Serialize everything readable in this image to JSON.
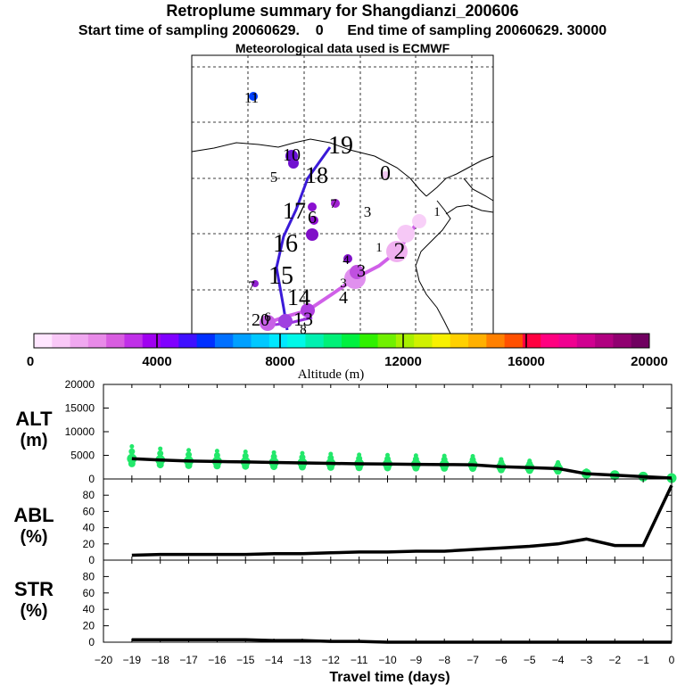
{
  "header": {
    "title": "Retroplume summary for Shangdianzi_200606",
    "subtitle": "Start time of sampling 20060629.    0      End time of sampling 20060629. 30000",
    "met": "Meteorological data used is ECMWF"
  },
  "colorbar": {
    "label": "Altitude (m)",
    "ticks": [
      "0",
      "4000",
      "8000",
      "12000",
      "16000",
      "20000"
    ],
    "colors": [
      "#ffe6ff",
      "#f9c8f7",
      "#f0a8f0",
      "#e88ae8",
      "#d85de0",
      "#c030e8",
      "#a000f0",
      "#8000ff",
      "#4010ff",
      "#0030ff",
      "#0070ff",
      "#00a0ff",
      "#00c8ff",
      "#00e8ff",
      "#00f8e8",
      "#00f0b0",
      "#00f078",
      "#00f040",
      "#30f000",
      "#70f000",
      "#a8f000",
      "#d0f000",
      "#f8f000",
      "#ffd000",
      "#ffb000",
      "#ff8000",
      "#ff5000",
      "#ff0040",
      "#ff0080",
      "#f00090",
      "#d00090",
      "#b00080",
      "#900070",
      "#700060"
    ]
  },
  "map": {
    "labels": [
      "11",
      "10",
      "5",
      "18",
      "19",
      "0",
      "7",
      "17",
      "3",
      "6",
      "16",
      "1",
      "4",
      "7",
      "15",
      "2",
      "3",
      "14",
      "4",
      "1",
      "3",
      "20",
      "6",
      "13",
      "8"
    ]
  },
  "xaxis": {
    "label": "Travel time (days)",
    "ticks": [
      "−20",
      "−19",
      "−18",
      "−17",
      "−16",
      "−15",
      "−14",
      "−13",
      "−12",
      "−11",
      "−10",
      "−9",
      "−8",
      "−7",
      "−6",
      "−5",
      "−4",
      "−3",
      "−2",
      "−1",
      "0"
    ]
  },
  "chart_data": [
    {
      "type": "line",
      "name": "ALT",
      "ylabel": "ALT\n(m)",
      "ylim": [
        0,
        20000
      ],
      "yticks": [
        "0",
        "5000",
        "10000",
        "15000",
        "20000"
      ],
      "x": [
        -19,
        -18,
        -17,
        -16,
        -15,
        -14,
        -13,
        -12,
        -11,
        -10,
        -9,
        -8,
        -7,
        -6,
        -5,
        -4,
        -3,
        -2,
        -1,
        0
      ],
      "values": [
        4300,
        4000,
        3800,
        3700,
        3600,
        3500,
        3400,
        3300,
        3200,
        3150,
        3100,
        3050,
        3000,
        2600,
        2400,
        2200,
        1100,
        800,
        500,
        200
      ]
    },
    {
      "type": "line",
      "name": "ABL",
      "ylabel": "ABL\n(%)",
      "ylim": [
        0,
        100
      ],
      "yticks": [
        "0",
        "20",
        "40",
        "60",
        "80"
      ],
      "x": [
        -19,
        -18,
        -17,
        -16,
        -15,
        -14,
        -13,
        -12,
        -11,
        -10,
        -9,
        -8,
        -7,
        -6,
        -5,
        -4,
        -3,
        -2,
        -1,
        0
      ],
      "values": [
        6,
        7,
        7,
        7,
        7,
        8,
        8,
        9,
        10,
        10,
        11,
        11,
        13,
        15,
        17,
        20,
        26,
        18,
        18,
        92
      ]
    },
    {
      "type": "line",
      "name": "STR",
      "ylabel": "STR\n(%)",
      "ylim": [
        0,
        100
      ],
      "yticks": [
        "0",
        "20",
        "40",
        "60",
        "80"
      ],
      "x": [
        -19,
        -18,
        -17,
        -16,
        -15,
        -14,
        -13,
        -12,
        -11,
        -10,
        -9,
        -8,
        -7,
        -6,
        -5,
        -4,
        -3,
        -2,
        -1,
        0
      ],
      "values": [
        3,
        3,
        3,
        3,
        3,
        2,
        2,
        1,
        1,
        0,
        0,
        0,
        0,
        0,
        0,
        0,
        0,
        0,
        0,
        0
      ]
    }
  ]
}
